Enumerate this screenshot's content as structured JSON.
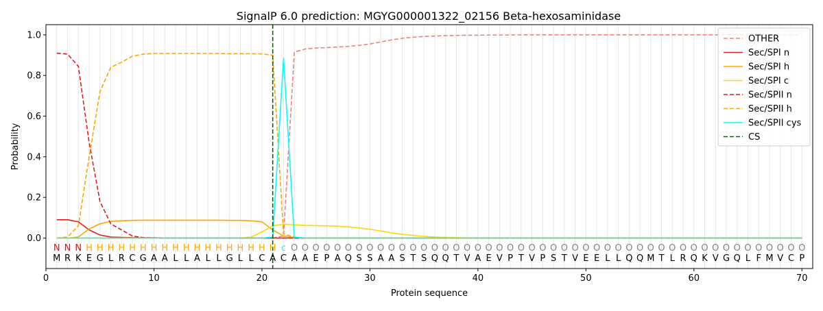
{
  "chart_data": {
    "type": "line",
    "title": "SignalP 6.0 prediction: MGYG000001322_02156 Beta-hexosaminidase",
    "xlabel": "Protein sequence",
    "ylabel": "Probability",
    "xlim": [
      0,
      71
    ],
    "ylim": [
      -0.15,
      1.05
    ],
    "xticks": [
      "0",
      "10",
      "20",
      "30",
      "40",
      "50",
      "60",
      "70"
    ],
    "yticks": [
      "0.0",
      "0.2",
      "0.4",
      "0.6",
      "0.8",
      "1.0"
    ],
    "grid": "vertical lines at every residue",
    "legend_position": "top-right",
    "sequence": [
      "M",
      "R",
      "K",
      "E",
      "G",
      "L",
      "R",
      "C",
      "G",
      "A",
      "A",
      "L",
      "L",
      "A",
      "L",
      "L",
      "G",
      "L",
      "L",
      "C",
      "A",
      "C",
      "A",
      "A",
      "E",
      "P",
      "A",
      "Q",
      "S",
      "S",
      "A",
      "A",
      "S",
      "T",
      "S",
      "Q",
      "Q",
      "T",
      "V",
      "A",
      "E",
      "V",
      "P",
      "T",
      "V",
      "P",
      "S",
      "T",
      "V",
      "E",
      "E",
      "L",
      "L",
      "Q",
      "Q",
      "M",
      "T",
      "L",
      "R",
      "Q",
      "K",
      "V",
      "G",
      "Q",
      "L",
      "F",
      "M",
      "V",
      "C",
      "P"
    ],
    "annotation": [
      "N",
      "N",
      "N",
      "H",
      "H",
      "H",
      "H",
      "H",
      "H",
      "H",
      "H",
      "H",
      "H",
      "H",
      "H",
      "H",
      "H",
      "H",
      "H",
      "H",
      "H",
      "c",
      "O",
      "O",
      "O",
      "O",
      "O",
      "O",
      "O",
      "O",
      "O",
      "O",
      "O",
      "O",
      "O",
      "O",
      "O",
      "O",
      "O",
      "O",
      "O",
      "O",
      "O",
      "O",
      "O",
      "O",
      "O",
      "O",
      "O",
      "O",
      "O",
      "O",
      "O",
      "O",
      "O",
      "O",
      "O",
      "O",
      "O",
      "O",
      "O",
      "O",
      "O",
      "O",
      "O",
      "O",
      "O",
      "O",
      "O",
      "O"
    ],
    "annotation_colors": {
      "N": "#ff0000",
      "H": "#ffa500",
      "c": "#00ffff",
      "O": "#808080"
    },
    "cleavage_site": 21,
    "series": [
      {
        "name": "OTHER",
        "color": "#f08080",
        "dash": true,
        "values": [
          0.0,
          0.0,
          0.0,
          0.0,
          0.0,
          0.0,
          0.0,
          0.0,
          0.0,
          0.0,
          0.0,
          0.0,
          0.0,
          0.0,
          0.0,
          0.0,
          0.0,
          0.0,
          0.0,
          0.0,
          0.0,
          0.01,
          0.915,
          0.93,
          0.935,
          0.937,
          0.94,
          0.943,
          0.948,
          0.955,
          0.965,
          0.975,
          0.983,
          0.988,
          0.992,
          0.994,
          0.996,
          0.997,
          0.998,
          0.998,
          0.999,
          0.999,
          0.999,
          1.0,
          1.0,
          1.0,
          1.0,
          1.0,
          1.0,
          1.0,
          1.0,
          1.0,
          1.0,
          1.0,
          1.0,
          1.0,
          1.0,
          1.0,
          1.0,
          1.0,
          1.0,
          1.0,
          1.0,
          1.0,
          1.0,
          1.0,
          1.0,
          1.0,
          1.0,
          1.0
        ]
      },
      {
        "name": "Sec/SPI n",
        "color": "#e31a1c",
        "dash": false,
        "values": [
          0.09,
          0.09,
          0.08,
          0.04,
          0.015,
          0.005,
          0.003,
          0.002,
          0.001,
          0.001,
          0.0,
          0.0,
          0.0,
          0.0,
          0.0,
          0.0,
          0.0,
          0.0,
          0.0,
          0.0,
          0.0,
          0.0,
          0.0,
          0.0,
          0.0,
          0.0,
          0.0,
          0.0,
          0.0,
          0.0,
          0.0,
          0.0,
          0.0,
          0.0,
          0.0,
          0.0,
          0.0,
          0.0,
          0.0,
          0.0,
          0.0,
          0.0,
          0.0,
          0.0,
          0.0,
          0.0,
          0.0,
          0.0,
          0.0,
          0.0,
          0.0,
          0.0,
          0.0,
          0.0,
          0.0,
          0.0,
          0.0,
          0.0,
          0.0,
          0.0,
          0.0,
          0.0,
          0.0,
          0.0,
          0.0,
          0.0,
          0.0,
          0.0,
          0.0,
          0.0
        ]
      },
      {
        "name": "Sec/SPI h",
        "color": "#ffa500",
        "dash": false,
        "values": [
          0.0,
          0.0,
          0.005,
          0.045,
          0.07,
          0.082,
          0.085,
          0.087,
          0.088,
          0.088,
          0.088,
          0.088,
          0.088,
          0.088,
          0.088,
          0.088,
          0.087,
          0.087,
          0.085,
          0.08,
          0.04,
          0.01,
          0.002,
          0.0,
          0.0,
          0.0,
          0.0,
          0.0,
          0.0,
          0.0,
          0.0,
          0.0,
          0.0,
          0.0,
          0.0,
          0.0,
          0.0,
          0.0,
          0.0,
          0.0,
          0.0,
          0.0,
          0.0,
          0.0,
          0.0,
          0.0,
          0.0,
          0.0,
          0.0,
          0.0,
          0.0,
          0.0,
          0.0,
          0.0,
          0.0,
          0.0,
          0.0,
          0.0,
          0.0,
          0.0,
          0.0,
          0.0,
          0.0,
          0.0,
          0.0,
          0.0,
          0.0,
          0.0,
          0.0,
          0.0
        ]
      },
      {
        "name": "Sec/SPI c",
        "color": "#ffd700",
        "dash": false,
        "values": [
          0.0,
          0.0,
          0.0,
          0.0,
          0.0,
          0.0,
          0.0,
          0.0,
          0.0,
          0.0,
          0.0,
          0.0,
          0.0,
          0.0,
          0.0,
          0.0,
          0.0,
          0.0,
          0.005,
          0.03,
          0.06,
          0.068,
          0.065,
          0.062,
          0.061,
          0.06,
          0.058,
          0.055,
          0.05,
          0.043,
          0.035,
          0.025,
          0.018,
          0.013,
          0.008,
          0.005,
          0.003,
          0.002,
          0.001,
          0.0,
          0.0,
          0.0,
          0.0,
          0.0,
          0.0,
          0.0,
          0.0,
          0.0,
          0.0,
          0.0,
          0.0,
          0.0,
          0.0,
          0.0,
          0.0,
          0.0,
          0.0,
          0.0,
          0.0,
          0.0,
          0.0,
          0.0,
          0.0,
          0.0,
          0.0,
          0.0,
          0.0,
          0.0,
          0.0,
          0.0
        ]
      },
      {
        "name": "Sec/SPII n",
        "color": "#e31a1c",
        "dash": true,
        "values": [
          0.91,
          0.905,
          0.845,
          0.47,
          0.18,
          0.07,
          0.04,
          0.01,
          0.002,
          0.001,
          0.0,
          0.0,
          0.0,
          0.0,
          0.0,
          0.0,
          0.0,
          0.0,
          0.0,
          0.0,
          0.0,
          0.0,
          0.0,
          0.0,
          0.0,
          0.0,
          0.0,
          0.0,
          0.0,
          0.0,
          0.0,
          0.0,
          0.0,
          0.0,
          0.0,
          0.0,
          0.0,
          0.0,
          0.0,
          0.0,
          0.0,
          0.0,
          0.0,
          0.0,
          0.0,
          0.0,
          0.0,
          0.0,
          0.0,
          0.0,
          0.0,
          0.0,
          0.0,
          0.0,
          0.0,
          0.0,
          0.0,
          0.0,
          0.0,
          0.0,
          0.0,
          0.0,
          0.0,
          0.0,
          0.0,
          0.0,
          0.0,
          0.0,
          0.0,
          0.0
        ]
      },
      {
        "name": "Sec/SPII h",
        "color": "#ffa500",
        "dash": true,
        "values": [
          0.0,
          0.005,
          0.06,
          0.4,
          0.72,
          0.84,
          0.865,
          0.895,
          0.905,
          0.908,
          0.908,
          0.908,
          0.908,
          0.908,
          0.908,
          0.908,
          0.907,
          0.907,
          0.907,
          0.906,
          0.9,
          0.02,
          0.005,
          0.0,
          0.0,
          0.0,
          0.0,
          0.0,
          0.0,
          0.0,
          0.0,
          0.0,
          0.0,
          0.0,
          0.0,
          0.0,
          0.0,
          0.0,
          0.0,
          0.0,
          0.0,
          0.0,
          0.0,
          0.0,
          0.0,
          0.0,
          0.0,
          0.0,
          0.0,
          0.0,
          0.0,
          0.0,
          0.0,
          0.0,
          0.0,
          0.0,
          0.0,
          0.0,
          0.0,
          0.0,
          0.0,
          0.0,
          0.0,
          0.0,
          0.0,
          0.0,
          0.0,
          0.0,
          0.0,
          0.0
        ]
      },
      {
        "name": "Sec/SPII cys",
        "color": "#00ffff",
        "dash": false,
        "values": [
          0.0,
          0.0,
          0.0,
          0.0,
          0.0,
          0.0,
          0.0,
          0.0,
          0.0,
          0.0,
          0.0,
          0.0,
          0.0,
          0.0,
          0.0,
          0.0,
          0.0,
          0.0,
          0.0,
          0.0,
          0.005,
          0.885,
          0.005,
          0.0,
          0.0,
          0.0,
          0.0,
          0.0,
          0.0,
          0.0,
          0.0,
          0.0,
          0.0,
          0.0,
          0.0,
          0.0,
          0.0,
          0.0,
          0.0,
          0.0,
          0.0,
          0.0,
          0.0,
          0.0,
          0.0,
          0.0,
          0.0,
          0.0,
          0.0,
          0.0,
          0.0,
          0.0,
          0.0,
          0.0,
          0.0,
          0.0,
          0.0,
          0.0,
          0.0,
          0.0,
          0.0,
          0.0,
          0.0,
          0.0,
          0.0,
          0.0,
          0.0,
          0.0,
          0.0,
          0.0
        ]
      },
      {
        "name": "CS",
        "color": "#006400",
        "dash": true,
        "vertical_at": 21
      }
    ]
  }
}
